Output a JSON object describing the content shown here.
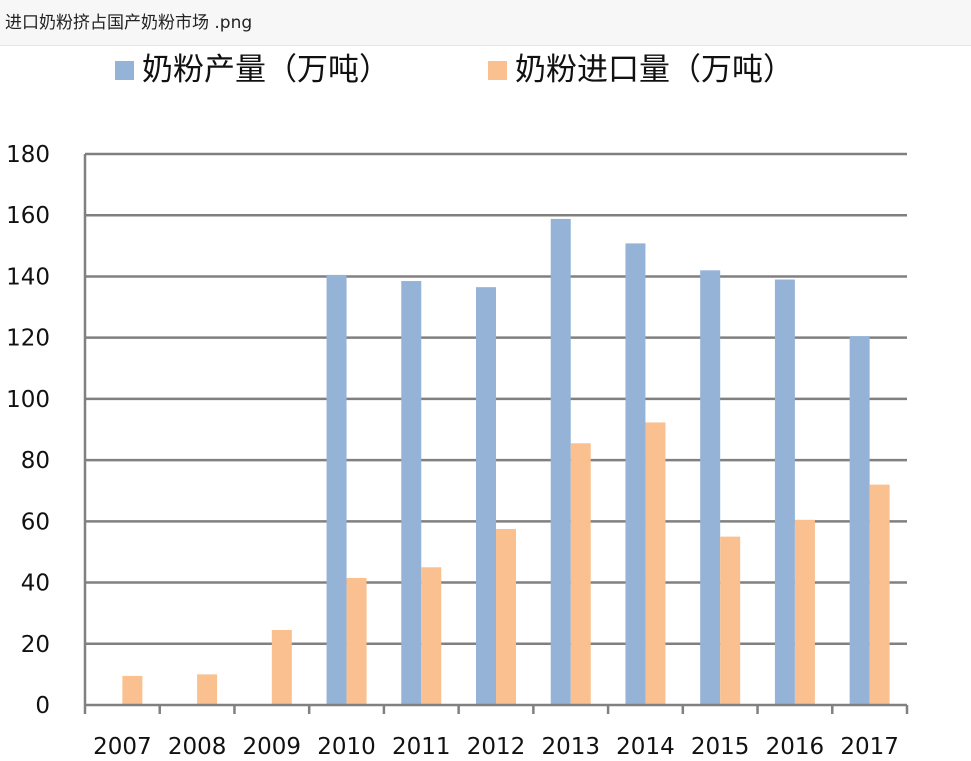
{
  "window": {
    "filename": "进口奶粉挤占国产奶粉市场 .png"
  },
  "chart_data": {
    "type": "bar",
    "categories": [
      "2007",
      "2008",
      "2009",
      "2010",
      "2011",
      "2012",
      "2013",
      "2014",
      "2015",
      "2016",
      "2017"
    ],
    "series": [
      {
        "name": "奶粉产量（万吨）",
        "color": "#95B3D7",
        "values": [
          null,
          null,
          null,
          140.5,
          138.5,
          136.5,
          158.8,
          150.8,
          142.0,
          139.0,
          120.5
        ]
      },
      {
        "name": "奶粉进口量（万吨）",
        "color": "#FAC090",
        "values": [
          9.5,
          10.0,
          24.5,
          41.5,
          45.0,
          57.5,
          85.5,
          92.3,
          55.0,
          60.5,
          72.0
        ]
      }
    ],
    "yticks": [
      "0",
      "20",
      "40",
      "60",
      "80",
      "100",
      "120",
      "140",
      "160",
      "180"
    ],
    "ylim": [
      0,
      180
    ],
    "grid": true,
    "legend_position": "top",
    "gridline_color": "#808080"
  }
}
